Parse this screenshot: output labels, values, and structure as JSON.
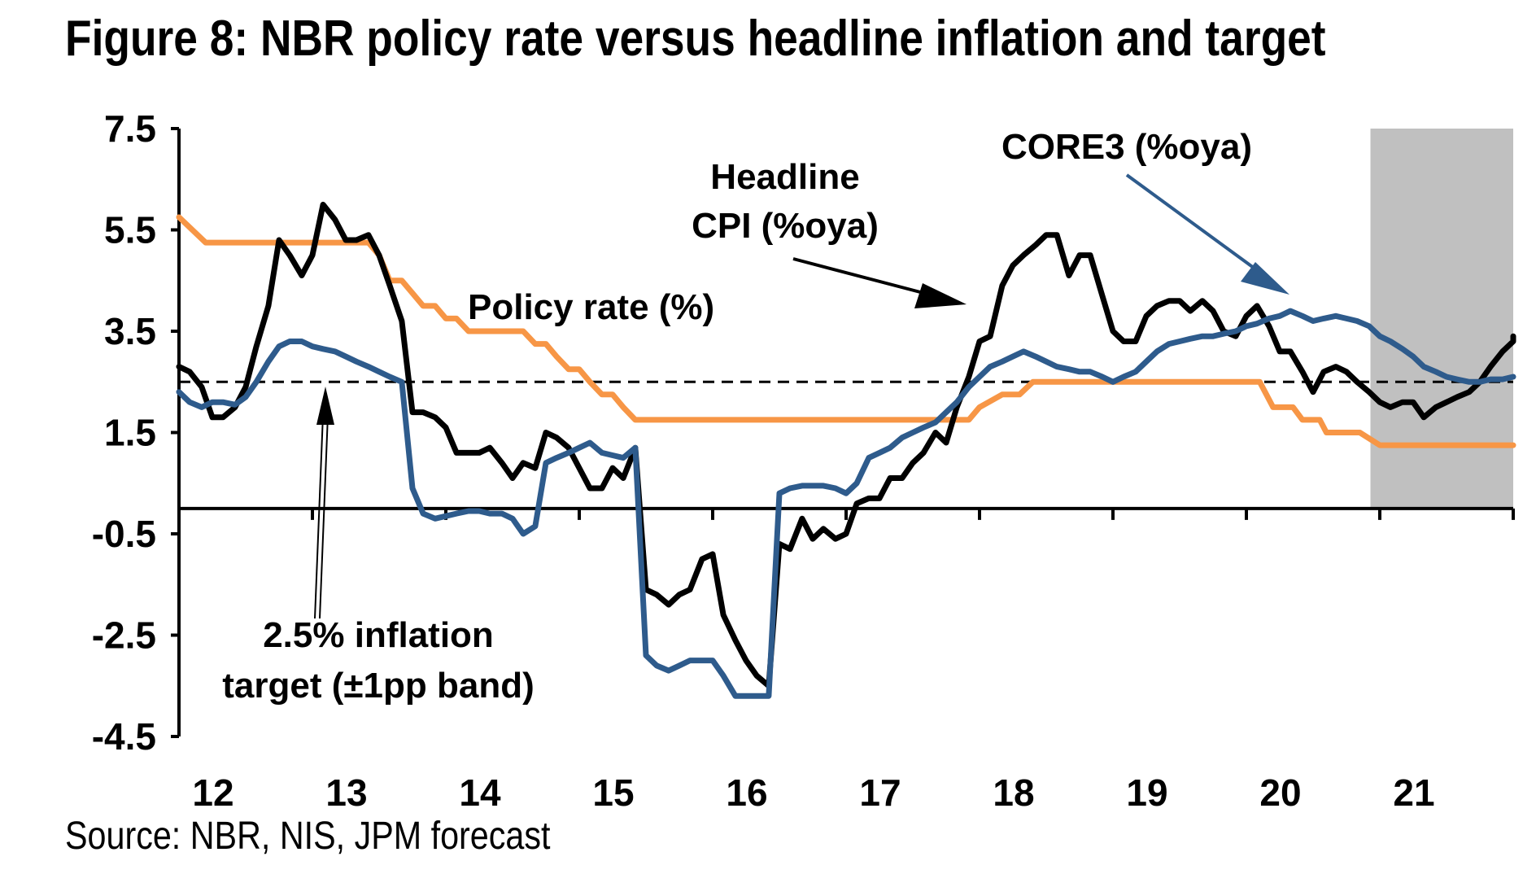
{
  "title": "Figure 8: NBR policy rate versus headline inflation and target",
  "source": "Source: NBR, NIS, JPM forecast",
  "chart_data": {
    "type": "line",
    "title": "Figure 8: NBR policy rate versus headline inflation and target",
    "xlabel": "",
    "ylabel": "",
    "ylim": [
      -4.5,
      7.5
    ],
    "xlim": [
      12,
      22
    ],
    "yticks": [
      "7.5",
      "5.5",
      "3.5",
      "1.5",
      "-0.5",
      "-2.5",
      "-4.5"
    ],
    "xticks": [
      "12",
      "13",
      "14",
      "15",
      "16",
      "17",
      "18",
      "19",
      "20",
      "21"
    ],
    "grid": false,
    "forecast_shading": {
      "from": 20.93,
      "to": 22.0,
      "color": "#c0c0c0"
    },
    "reference_line": {
      "name": "2.5% inflation target (±1pp band)",
      "y": 2.5,
      "style": "dashed",
      "color": "#000000"
    },
    "series": [
      {
        "name": "Policy rate (%)",
        "color": "#f79646",
        "points": [
          [
            12.0,
            5.75
          ],
          [
            12.2,
            5.25
          ],
          [
            12.5,
            5.25
          ],
          [
            12.8,
            5.25
          ],
          [
            13.0,
            5.25
          ],
          [
            13.3,
            5.25
          ],
          [
            13.42,
            5.25
          ],
          [
            13.5,
            5.0
          ],
          [
            13.58,
            4.5
          ],
          [
            13.67,
            4.5
          ],
          [
            13.75,
            4.25
          ],
          [
            13.83,
            4.0
          ],
          [
            13.92,
            4.0
          ],
          [
            14.0,
            3.75
          ],
          [
            14.08,
            3.75
          ],
          [
            14.17,
            3.5
          ],
          [
            14.25,
            3.5
          ],
          [
            14.5,
            3.5
          ],
          [
            14.58,
            3.5
          ],
          [
            14.67,
            3.25
          ],
          [
            14.75,
            3.25
          ],
          [
            14.83,
            3.0
          ],
          [
            14.92,
            2.75
          ],
          [
            15.0,
            2.75
          ],
          [
            15.08,
            2.5
          ],
          [
            15.17,
            2.25
          ],
          [
            15.25,
            2.25
          ],
          [
            15.33,
            2.0
          ],
          [
            15.42,
            1.75
          ],
          [
            15.5,
            1.75
          ],
          [
            17.0,
            1.75
          ],
          [
            17.75,
            1.75
          ],
          [
            17.92,
            1.75
          ],
          [
            18.0,
            2.0
          ],
          [
            18.17,
            2.25
          ],
          [
            18.3,
            2.25
          ],
          [
            18.4,
            2.5
          ],
          [
            19.0,
            2.5
          ],
          [
            20.0,
            2.5
          ],
          [
            20.1,
            2.5
          ],
          [
            20.2,
            2.0
          ],
          [
            20.35,
            2.0
          ],
          [
            20.42,
            1.75
          ],
          [
            20.55,
            1.75
          ],
          [
            20.6,
            1.5
          ],
          [
            20.85,
            1.5
          ],
          [
            21.0,
            1.25
          ],
          [
            21.5,
            1.25
          ],
          [
            22.0,
            1.25
          ]
        ]
      },
      {
        "name": "Headline CPI (%oya)",
        "color": "#000000",
        "points": [
          [
            12.0,
            2.8
          ],
          [
            12.08,
            2.7
          ],
          [
            12.17,
            2.4
          ],
          [
            12.25,
            1.8
          ],
          [
            12.33,
            1.8
          ],
          [
            12.42,
            2.0
          ],
          [
            12.5,
            2.4
          ],
          [
            12.58,
            3.2
          ],
          [
            12.67,
            4.0
          ],
          [
            12.75,
            5.3
          ],
          [
            12.83,
            5.0
          ],
          [
            12.92,
            4.6
          ],
          [
            13.0,
            5.0
          ],
          [
            13.08,
            6.0
          ],
          [
            13.17,
            5.7
          ],
          [
            13.25,
            5.3
          ],
          [
            13.33,
            5.3
          ],
          [
            13.42,
            5.4
          ],
          [
            13.5,
            5.0
          ],
          [
            13.58,
            4.4
          ],
          [
            13.67,
            3.7
          ],
          [
            13.75,
            1.9
          ],
          [
            13.83,
            1.9
          ],
          [
            13.92,
            1.8
          ],
          [
            14.0,
            1.6
          ],
          [
            14.08,
            1.1
          ],
          [
            14.17,
            1.1
          ],
          [
            14.25,
            1.1
          ],
          [
            14.33,
            1.2
          ],
          [
            14.42,
            0.9
          ],
          [
            14.5,
            0.6
          ],
          [
            14.58,
            0.9
          ],
          [
            14.67,
            0.8
          ],
          [
            14.75,
            1.5
          ],
          [
            14.83,
            1.4
          ],
          [
            14.92,
            1.2
          ],
          [
            15.0,
            0.8
          ],
          [
            15.08,
            0.4
          ],
          [
            15.17,
            0.4
          ],
          [
            15.25,
            0.8
          ],
          [
            15.33,
            0.6
          ],
          [
            15.42,
            1.2
          ],
          [
            15.5,
            -1.6
          ],
          [
            15.58,
            -1.7
          ],
          [
            15.67,
            -1.9
          ],
          [
            15.75,
            -1.7
          ],
          [
            15.83,
            -1.6
          ],
          [
            15.92,
            -1.0
          ],
          [
            16.0,
            -0.9
          ],
          [
            16.08,
            -2.1
          ],
          [
            16.17,
            -2.6
          ],
          [
            16.25,
            -3.0
          ],
          [
            16.33,
            -3.3
          ],
          [
            16.42,
            -3.5
          ],
          [
            16.5,
            -0.7
          ],
          [
            16.58,
            -0.8
          ],
          [
            16.67,
            -0.2
          ],
          [
            16.75,
            -0.6
          ],
          [
            16.83,
            -0.4
          ],
          [
            16.92,
            -0.6
          ],
          [
            17.0,
            -0.5
          ],
          [
            17.08,
            0.1
          ],
          [
            17.17,
            0.2
          ],
          [
            17.25,
            0.2
          ],
          [
            17.33,
            0.6
          ],
          [
            17.42,
            0.6
          ],
          [
            17.5,
            0.9
          ],
          [
            17.58,
            1.1
          ],
          [
            17.67,
            1.5
          ],
          [
            17.75,
            1.3
          ],
          [
            17.83,
            2.0
          ],
          [
            17.92,
            2.6
          ],
          [
            18.0,
            3.3
          ],
          [
            18.08,
            3.4
          ],
          [
            18.17,
            4.4
          ],
          [
            18.25,
            4.8
          ],
          [
            18.33,
            5.0
          ],
          [
            18.42,
            5.2
          ],
          [
            18.5,
            5.4
          ],
          [
            18.58,
            5.4
          ],
          [
            18.67,
            4.6
          ],
          [
            18.75,
            5.0
          ],
          [
            18.83,
            5.0
          ],
          [
            18.92,
            4.2
          ],
          [
            19.0,
            3.5
          ],
          [
            19.08,
            3.3
          ],
          [
            19.17,
            3.3
          ],
          [
            19.25,
            3.8
          ],
          [
            19.33,
            4.0
          ],
          [
            19.42,
            4.1
          ],
          [
            19.5,
            4.1
          ],
          [
            19.58,
            3.9
          ],
          [
            19.67,
            4.1
          ],
          [
            19.75,
            3.9
          ],
          [
            19.83,
            3.5
          ],
          [
            19.92,
            3.4
          ],
          [
            20.0,
            3.8
          ],
          [
            20.08,
            4.0
          ],
          [
            20.17,
            3.6
          ],
          [
            20.25,
            3.1
          ],
          [
            20.33,
            3.1
          ],
          [
            20.42,
            2.7
          ],
          [
            20.5,
            2.3
          ],
          [
            20.58,
            2.7
          ],
          [
            20.67,
            2.8
          ],
          [
            20.75,
            2.7
          ],
          [
            20.83,
            2.5
          ],
          [
            20.92,
            2.3
          ],
          [
            21.0,
            2.1
          ],
          [
            21.08,
            2.0
          ],
          [
            21.17,
            2.1
          ],
          [
            21.25,
            2.1
          ],
          [
            21.33,
            1.8
          ],
          [
            21.42,
            2.0
          ],
          [
            21.5,
            2.1
          ],
          [
            21.58,
            2.2
          ],
          [
            21.67,
            2.3
          ],
          [
            21.75,
            2.5
          ],
          [
            21.83,
            2.8
          ],
          [
            21.92,
            3.1
          ],
          [
            22.0,
            3.3
          ],
          [
            22.0,
            3.4
          ]
        ]
      },
      {
        "name": "CORE3 (%oya)",
        "color": "#2e5b8c",
        "points": [
          [
            12.0,
            2.3
          ],
          [
            12.08,
            2.1
          ],
          [
            12.17,
            2.0
          ],
          [
            12.25,
            2.1
          ],
          [
            12.33,
            2.1
          ],
          [
            12.42,
            2.05
          ],
          [
            12.5,
            2.2
          ],
          [
            12.58,
            2.5
          ],
          [
            12.67,
            2.9
          ],
          [
            12.75,
            3.2
          ],
          [
            12.83,
            3.3
          ],
          [
            12.92,
            3.3
          ],
          [
            13.0,
            3.2
          ],
          [
            13.08,
            3.15
          ],
          [
            13.17,
            3.1
          ],
          [
            13.25,
            3.0
          ],
          [
            13.33,
            2.9
          ],
          [
            13.42,
            2.8
          ],
          [
            13.5,
            2.7
          ],
          [
            13.58,
            2.6
          ],
          [
            13.67,
            2.5
          ],
          [
            13.75,
            0.4
          ],
          [
            13.83,
            -0.1
          ],
          [
            13.92,
            -0.2
          ],
          [
            14.0,
            -0.15
          ],
          [
            14.08,
            -0.1
          ],
          [
            14.17,
            -0.05
          ],
          [
            14.25,
            -0.05
          ],
          [
            14.33,
            -0.1
          ],
          [
            14.42,
            -0.1
          ],
          [
            14.5,
            -0.2
          ],
          [
            14.58,
            -0.5
          ],
          [
            14.67,
            -0.35
          ],
          [
            14.75,
            0.9
          ],
          [
            14.83,
            1.0
          ],
          [
            14.92,
            1.1
          ],
          [
            15.0,
            1.2
          ],
          [
            15.08,
            1.3
          ],
          [
            15.17,
            1.1
          ],
          [
            15.25,
            1.05
          ],
          [
            15.33,
            1.0
          ],
          [
            15.42,
            1.2
          ],
          [
            15.5,
            -2.9
          ],
          [
            15.58,
            -3.1
          ],
          [
            15.67,
            -3.2
          ],
          [
            15.75,
            -3.1
          ],
          [
            15.83,
            -3.0
          ],
          [
            15.92,
            -3.0
          ],
          [
            16.0,
            -3.0
          ],
          [
            16.08,
            -3.3
          ],
          [
            16.17,
            -3.7
          ],
          [
            16.25,
            -3.7
          ],
          [
            16.33,
            -3.7
          ],
          [
            16.42,
            -3.7
          ],
          [
            16.5,
            0.3
          ],
          [
            16.58,
            0.4
          ],
          [
            16.67,
            0.45
          ],
          [
            16.75,
            0.45
          ],
          [
            16.83,
            0.45
          ],
          [
            16.92,
            0.4
          ],
          [
            17.0,
            0.3
          ],
          [
            17.08,
            0.5
          ],
          [
            17.17,
            1.0
          ],
          [
            17.25,
            1.1
          ],
          [
            17.33,
            1.2
          ],
          [
            17.42,
            1.4
          ],
          [
            17.5,
            1.5
          ],
          [
            17.58,
            1.6
          ],
          [
            17.67,
            1.7
          ],
          [
            17.75,
            1.9
          ],
          [
            17.83,
            2.1
          ],
          [
            17.92,
            2.4
          ],
          [
            18.0,
            2.6
          ],
          [
            18.08,
            2.8
          ],
          [
            18.17,
            2.9
          ],
          [
            18.25,
            3.0
          ],
          [
            18.33,
            3.1
          ],
          [
            18.42,
            3.0
          ],
          [
            18.5,
            2.9
          ],
          [
            18.58,
            2.8
          ],
          [
            18.67,
            2.75
          ],
          [
            18.75,
            2.7
          ],
          [
            18.83,
            2.7
          ],
          [
            18.92,
            2.6
          ],
          [
            19.0,
            2.5
          ],
          [
            19.08,
            2.6
          ],
          [
            19.17,
            2.7
          ],
          [
            19.25,
            2.9
          ],
          [
            19.33,
            3.1
          ],
          [
            19.42,
            3.25
          ],
          [
            19.5,
            3.3
          ],
          [
            19.58,
            3.35
          ],
          [
            19.67,
            3.4
          ],
          [
            19.75,
            3.4
          ],
          [
            19.83,
            3.45
          ],
          [
            19.92,
            3.5
          ],
          [
            20.0,
            3.6
          ],
          [
            20.08,
            3.65
          ],
          [
            20.17,
            3.75
          ],
          [
            20.25,
            3.8
          ],
          [
            20.33,
            3.9
          ],
          [
            20.42,
            3.8
          ],
          [
            20.5,
            3.7
          ],
          [
            20.58,
            3.75
          ],
          [
            20.67,
            3.8
          ],
          [
            20.75,
            3.75
          ],
          [
            20.83,
            3.7
          ],
          [
            20.92,
            3.6
          ],
          [
            21.0,
            3.4
          ],
          [
            21.08,
            3.3
          ],
          [
            21.17,
            3.15
          ],
          [
            21.25,
            3.0
          ],
          [
            21.33,
            2.8
          ],
          [
            21.42,
            2.7
          ],
          [
            21.5,
            2.6
          ],
          [
            21.58,
            2.55
          ],
          [
            21.67,
            2.5
          ],
          [
            21.75,
            2.5
          ],
          [
            21.83,
            2.55
          ],
          [
            21.92,
            2.55
          ],
          [
            22.0,
            2.6
          ]
        ]
      }
    ],
    "annotations": [
      {
        "lines": [
          "Policy rate (%)"
        ]
      },
      {
        "lines": [
          "Headline",
          "CPI (%oya)"
        ]
      },
      {
        "lines": [
          "CORE3 (%oya)"
        ]
      },
      {
        "lines": [
          "2.5% inflation",
          "target (±1pp band)"
        ]
      }
    ]
  }
}
